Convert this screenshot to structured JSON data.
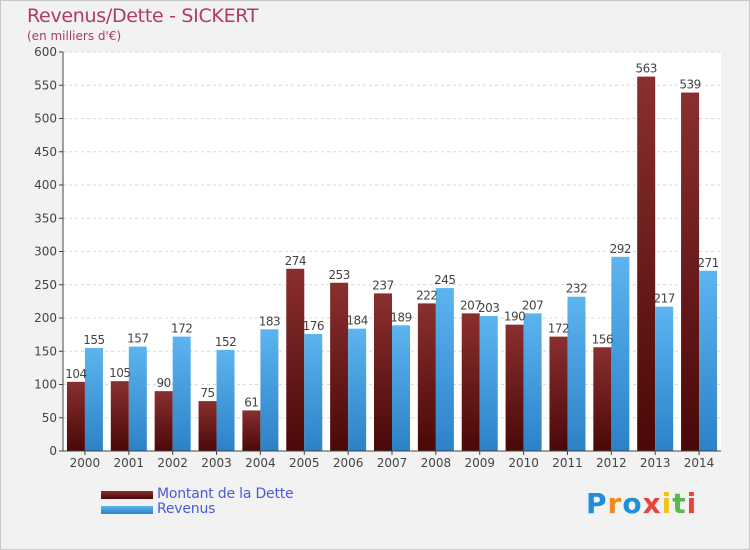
{
  "chart_data": {
    "type": "bar",
    "title": "Revenus/Dette - SICKERT",
    "subtitle": "(en milliers d'€)",
    "categories": [
      "2000",
      "2001",
      "2002",
      "2003",
      "2004",
      "2005",
      "2006",
      "2007",
      "2008",
      "2009",
      "2010",
      "2011",
      "2012",
      "2013",
      "2014"
    ],
    "series": [
      {
        "name": "Montant de la Dette",
        "color": "#6b1414",
        "values": [
          104,
          105,
          90,
          75,
          61,
          274,
          253,
          237,
          222,
          207,
          190,
          172,
          156,
          563,
          539
        ]
      },
      {
        "name": "Revenus",
        "color": "#3d9ae0",
        "values": [
          155,
          157,
          172,
          152,
          183,
          176,
          184,
          189,
          245,
          203,
          207,
          232,
          292,
          217,
          271
        ]
      }
    ],
    "y_ticks": [
      0,
      50,
      100,
      150,
      200,
      250,
      300,
      350,
      400,
      450,
      500,
      550,
      600
    ],
    "ylim": [
      0,
      600
    ],
    "grid": true,
    "legend_position": "bottom-left"
  },
  "logo": {
    "letters": [
      {
        "ch": "P",
        "color": "#1f8fd6"
      },
      {
        "ch": "r",
        "color": "#f08a1c"
      },
      {
        "ch": "o",
        "color": "#1f8fd6"
      },
      {
        "ch": "x",
        "color": "#e8443a"
      },
      {
        "ch": "i",
        "color": "#f0c419"
      },
      {
        "ch": "t",
        "color": "#57b94a"
      },
      {
        "ch": "i",
        "color": "#e8443a"
      }
    ]
  }
}
